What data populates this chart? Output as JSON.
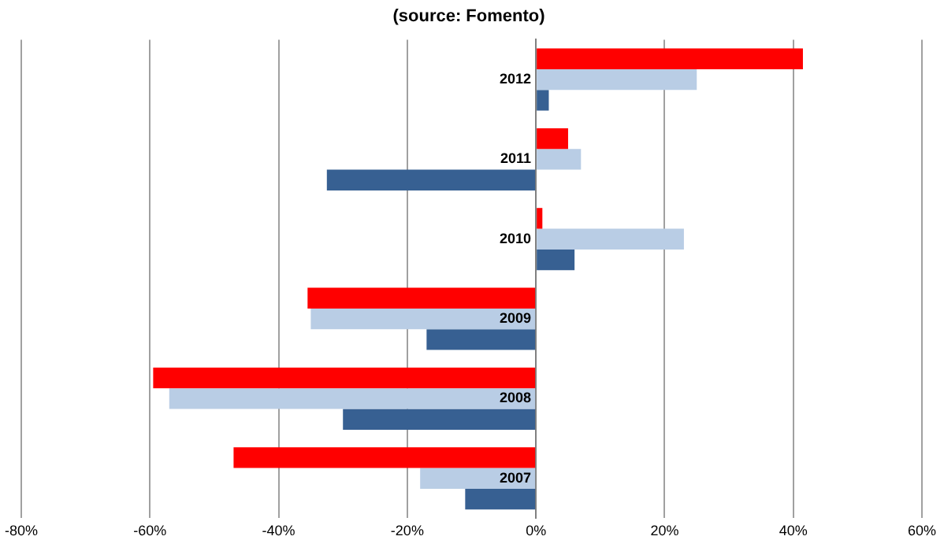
{
  "chart_data": {
    "type": "bar",
    "orientation": "horizontal",
    "title": "(source: Fomento)",
    "categories": [
      "2012",
      "2011",
      "2010",
      "2009",
      "2008",
      "2007"
    ],
    "series": [
      {
        "color": "#ff0000",
        "values": [
          41.5,
          5,
          1,
          -35.5,
          -59.5,
          -47
        ]
      },
      {
        "color": "#b9cde5",
        "values": [
          25,
          7,
          23,
          -35,
          -57,
          -18
        ]
      },
      {
        "color": "#376092",
        "values": [
          2,
          -32.5,
          6,
          -17,
          -30,
          -11
        ]
      }
    ],
    "xlim": [
      -80,
      60
    ],
    "xticks": [
      {
        "value": -80,
        "label": "-80%"
      },
      {
        "value": -60,
        "label": "-60%"
      },
      {
        "value": -40,
        "label": "-40%"
      },
      {
        "value": -20,
        "label": "-20%"
      },
      {
        "value": 0,
        "label": "0%"
      },
      {
        "value": 20,
        "label": "20%"
      },
      {
        "value": 40,
        "label": "40%"
      },
      {
        "value": 60,
        "label": "60%"
      }
    ],
    "grid": "x",
    "legend": false
  }
}
